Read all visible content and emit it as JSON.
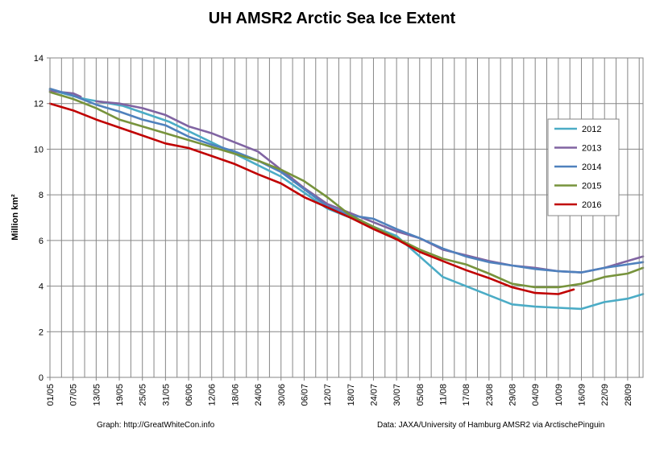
{
  "credits": {
    "left": "Graph: http://GreatWhiteCon.info",
    "right": "Data: JAXA/University of Hamburg AMSR2 via ArctischePinguin"
  },
  "chart_data": {
    "type": "line",
    "title": "UH AMSR2 Arctic Sea Ice Extent",
    "xlabel": "",
    "ylabel": "Million km²",
    "ylim": [
      0,
      14
    ],
    "yticks": [
      0,
      2,
      4,
      6,
      8,
      10,
      12,
      14
    ],
    "xlim": [
      "01/05",
      "02/10"
    ],
    "xticks": [
      "01/05",
      "07/05",
      "13/05",
      "19/05",
      "25/05",
      "31/05",
      "06/06",
      "12/06",
      "18/06",
      "24/06",
      "30/06",
      "06/07",
      "12/07",
      "18/07",
      "24/07",
      "30/07",
      "05/08",
      "11/08",
      "17/08",
      "23/08",
      "29/08",
      "04/09",
      "10/09",
      "16/09",
      "22/09",
      "28/09"
    ],
    "grid": true,
    "legend_position": "right",
    "series": [
      {
        "name": "2012",
        "color": "#4bacc6",
        "x": [
          "01/05",
          "10/05",
          "20/05",
          "01/06",
          "12/06",
          "24/06",
          "30/06",
          "06/07",
          "12/07",
          "18/07",
          "24/07",
          "30/07",
          "05/08",
          "11/08",
          "17/08",
          "23/08",
          "29/08",
          "04/09",
          "10/09",
          "16/09",
          "22/09",
          "28/09",
          "02/10"
        ],
        "y": [
          12.6,
          12.2,
          11.9,
          11.2,
          10.3,
          9.3,
          8.8,
          8.1,
          7.4,
          7.0,
          6.6,
          6.2,
          5.3,
          4.4,
          4.0,
          3.6,
          3.2,
          3.1,
          3.05,
          3.0,
          3.3,
          3.45,
          3.65
        ]
      },
      {
        "name": "2013",
        "color": "#8064a2",
        "x": [
          "01/05",
          "07/05",
          "09/05",
          "11/05",
          "13/05",
          "19/05",
          "25/05",
          "31/05",
          "06/06",
          "12/06",
          "18/06",
          "24/06",
          "30/06",
          "06/07",
          "12/07",
          "18/07",
          "24/07",
          "30/07",
          "05/08",
          "11/08",
          "17/08",
          "23/08",
          "29/08",
          "04/09",
          "10/09",
          "16/09",
          "22/09",
          "28/09",
          "02/10"
        ],
        "y": [
          12.55,
          12.45,
          12.3,
          null,
          12.1,
          12.0,
          11.8,
          11.5,
          11.0,
          10.7,
          10.3,
          9.9,
          9.1,
          8.3,
          7.6,
          7.2,
          6.8,
          6.4,
          6.1,
          5.6,
          5.35,
          5.1,
          4.9,
          4.8,
          4.65,
          4.6,
          4.8,
          5.1,
          5.3
        ]
      },
      {
        "name": "2014",
        "color": "#4f81bd",
        "x": [
          "01/05",
          "07/05",
          "13/05",
          "19/05",
          "25/05",
          "31/05",
          "06/06",
          "12/06",
          "18/06",
          "24/06",
          "30/06",
          "06/07",
          "12/07",
          "18/07",
          "24/07",
          "30/07",
          "05/08",
          "11/08",
          "17/08",
          "23/08",
          "29/08",
          "04/09",
          "10/09",
          "16/09",
          "22/09",
          "28/09",
          "02/10"
        ],
        "y": [
          12.65,
          12.35,
          11.95,
          11.65,
          11.3,
          11.05,
          10.55,
          10.2,
          9.9,
          9.5,
          9.0,
          8.25,
          7.5,
          7.1,
          6.95,
          6.5,
          6.1,
          5.65,
          5.3,
          5.05,
          4.9,
          4.75,
          4.65,
          4.6,
          4.8,
          4.95,
          5.05
        ]
      },
      {
        "name": "2015",
        "color": "#77933c",
        "x": [
          "01/05",
          "07/05",
          "13/05",
          "19/05",
          "25/05",
          "31/05",
          "06/06",
          "12/06",
          "18/06",
          "24/06",
          "30/06",
          "06/07",
          "12/07",
          "18/07",
          "24/07",
          "30/07",
          "05/08",
          "11/08",
          "17/08",
          "23/08",
          "29/08",
          "04/09",
          "10/09",
          "16/09",
          "22/09",
          "28/09",
          "02/10"
        ],
        "y": [
          12.5,
          12.2,
          11.8,
          11.3,
          11.0,
          10.7,
          10.4,
          10.1,
          9.8,
          9.5,
          9.1,
          8.6,
          7.9,
          7.1,
          6.6,
          6.1,
          5.6,
          5.2,
          4.95,
          4.55,
          4.1,
          3.95,
          3.95,
          4.1,
          4.4,
          4.55,
          4.8
        ]
      },
      {
        "name": "2016",
        "color": "#c00000",
        "x": [
          "01/05",
          "07/05",
          "13/05",
          "19/05",
          "25/05",
          "31/05",
          "06/06",
          "12/06",
          "18/06",
          "24/06",
          "30/06",
          "06/07",
          "12/07",
          "18/07",
          "24/07",
          "30/07",
          "05/08",
          "11/08",
          "17/08",
          "23/08",
          "29/08",
          "04/09",
          "10/09",
          "14/09"
        ],
        "y": [
          12.0,
          11.7,
          11.3,
          10.95,
          10.6,
          10.25,
          10.05,
          9.7,
          9.35,
          8.9,
          8.5,
          7.9,
          7.45,
          7.0,
          6.5,
          6.05,
          5.5,
          5.1,
          4.7,
          4.35,
          3.95,
          3.7,
          3.65,
          3.85
        ]
      }
    ]
  }
}
